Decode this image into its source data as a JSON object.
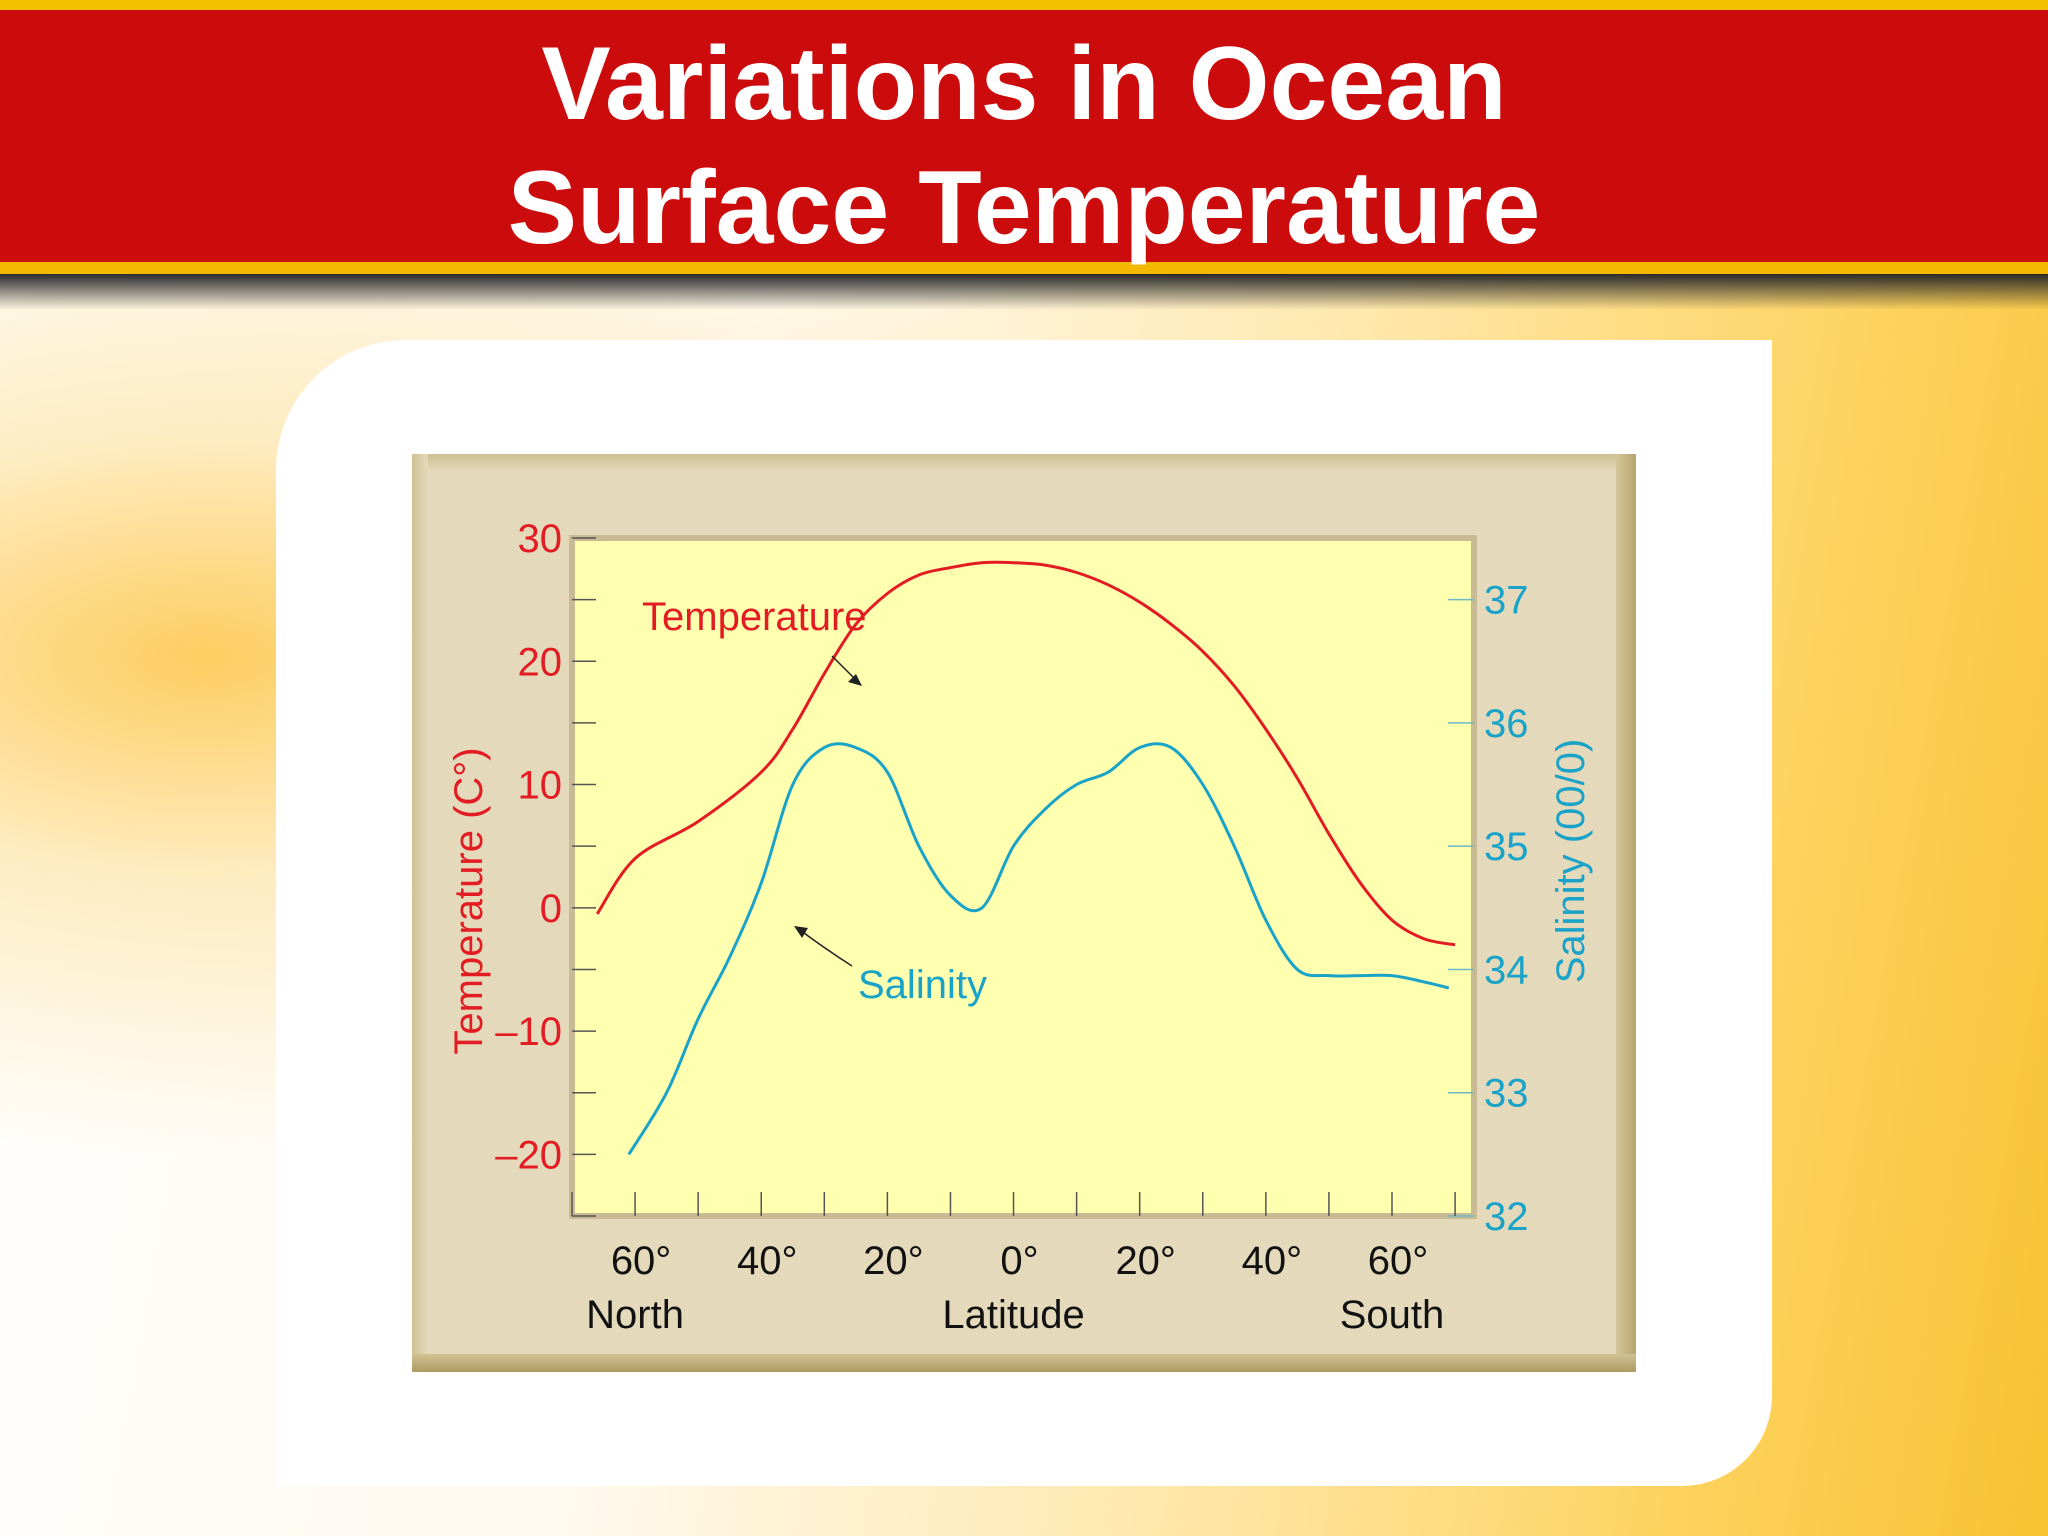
{
  "slide": {
    "title_line1": "Variations in Ocean",
    "title_line2": "Surface Temperature"
  },
  "colors": {
    "temperature": "#e31b23",
    "salinity": "#1aa3c8",
    "plot_bg": "#ffffb0",
    "title_bar": "#cc0c0c"
  },
  "chart_data": {
    "type": "line",
    "xlabel": "Latitude",
    "x_end_labels": {
      "left": "North",
      "right": "South"
    },
    "x_tick_labels": [
      "60°",
      "40°",
      "20°",
      "0°",
      "20°",
      "40°",
      "60°"
    ],
    "x_tick_values": [
      -60,
      -40,
      -20,
      0,
      20,
      40,
      60
    ],
    "xlim": [
      -70,
      73
    ],
    "y_left": {
      "label": "Temperature (C°)",
      "ylim": [
        -25,
        30
      ],
      "ticks": [
        30,
        20,
        10,
        0,
        -10,
        -20
      ],
      "tick_labels": [
        "30",
        "20",
        "10",
        "0",
        "–10",
        "–20"
      ]
    },
    "y_right": {
      "label": "Salinity (00/0)",
      "ylim": [
        32,
        37.5
      ],
      "ticks": [
        37,
        36,
        35,
        34,
        33,
        32
      ],
      "tick_labels": [
        "37",
        "36",
        "35",
        "34",
        "33",
        "32"
      ]
    },
    "series": [
      {
        "name": "Temperature",
        "axis": "left",
        "x": [
          -66,
          -60,
          -50,
          -40,
          -35,
          -30,
          -25,
          -20,
          -15,
          -10,
          -5,
          0,
          5,
          10,
          15,
          20,
          25,
          30,
          35,
          40,
          45,
          50,
          55,
          60,
          65,
          70
        ],
        "y": [
          -0.5,
          4,
          7,
          11,
          14.5,
          19,
          23,
          25.5,
          27,
          27.6,
          28,
          28,
          27.8,
          27.2,
          26.2,
          24.8,
          23,
          20.8,
          18,
          14.5,
          10.5,
          6,
          2,
          -1,
          -2.5,
          -3
        ]
      },
      {
        "name": "Salinity",
        "axis": "right",
        "x": [
          -61,
          -55,
          -50,
          -45,
          -40,
          -35,
          -30,
          -25,
          -20,
          -15,
          -10,
          -5,
          0,
          5,
          10,
          15,
          20,
          25,
          30,
          35,
          40,
          45,
          50,
          55,
          60,
          65,
          69
        ],
        "y": [
          32.5,
          33.0,
          33.6,
          34.1,
          34.7,
          35.5,
          35.8,
          35.8,
          35.6,
          35.0,
          34.6,
          34.5,
          35.0,
          35.3,
          35.5,
          35.6,
          35.8,
          35.8,
          35.5,
          35.0,
          34.4,
          34.0,
          33.95,
          33.95,
          33.95,
          33.9,
          33.85
        ]
      }
    ],
    "annotations": [
      {
        "text": "Temperature",
        "series": "Temperature"
      },
      {
        "text": "Salinity",
        "series": "Salinity"
      }
    ],
    "grid": false,
    "legend": "none"
  }
}
